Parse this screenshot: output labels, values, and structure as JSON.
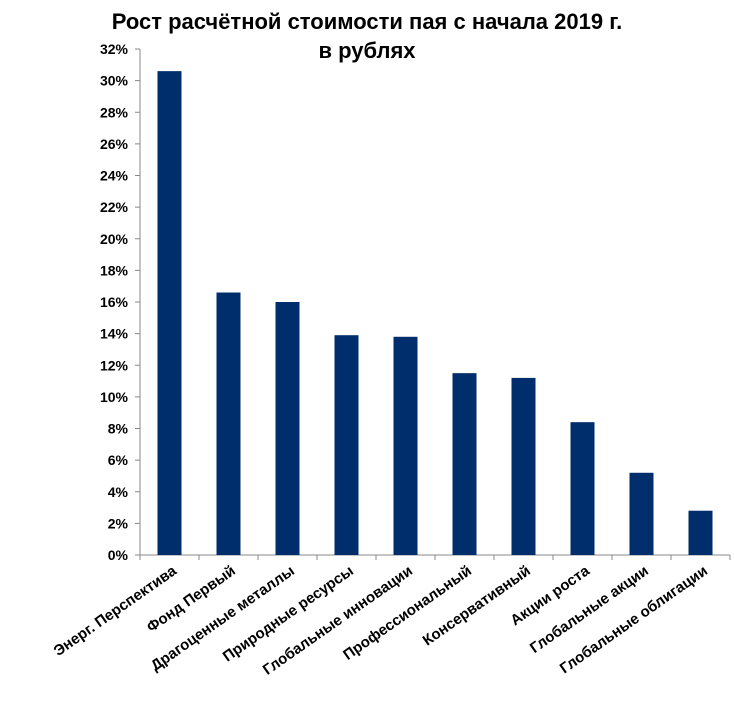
{
  "chart_data": {
    "type": "bar",
    "title": "Рост расчётной стоимости пая с начала 2019 г.",
    "subtitle": "в рублях",
    "xlabel": "",
    "ylabel": "",
    "ylim": [
      0,
      32
    ],
    "y_ticks": [
      "0%",
      "2%",
      "4%",
      "6%",
      "8%",
      "10%",
      "12%",
      "14%",
      "16%",
      "18%",
      "20%",
      "22%",
      "24%",
      "26%",
      "28%",
      "30%",
      "32%"
    ],
    "grid": false,
    "legend": "none",
    "bar_color": "#002d6b",
    "categories": [
      "Энерг. Перспектива",
      "Фонд Первый",
      "Драгоценные металлы",
      "Природные ресурсы",
      "Глобальные инновации",
      "Профессиональный",
      "Консервативный",
      "Акции роста",
      "Глобальные акции",
      "Глобальные облигации"
    ],
    "values": [
      30.6,
      16.6,
      16.0,
      13.9,
      13.8,
      11.5,
      11.2,
      8.4,
      5.2,
      2.8
    ]
  }
}
